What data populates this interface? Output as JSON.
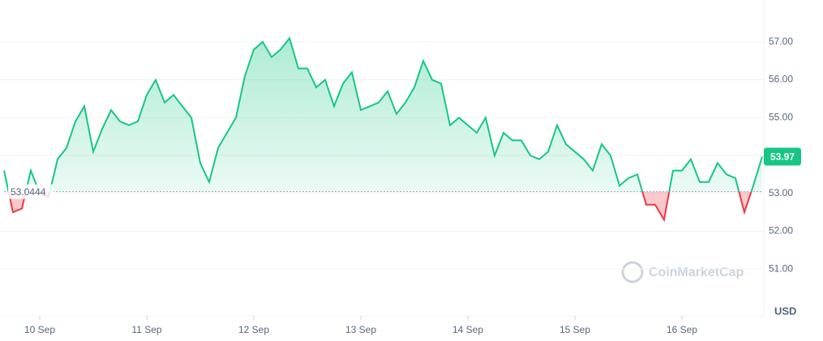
{
  "chart_data": {
    "type": "line",
    "categories": [
      null,
      null,
      null,
      null,
      "10 Sep",
      null,
      null,
      null,
      null,
      null,
      null,
      null,
      null,
      null,
      null,
      null,
      "11 Sep",
      null,
      null,
      null,
      null,
      null,
      null,
      null,
      null,
      null,
      null,
      null,
      "12 Sep",
      null,
      null,
      null,
      null,
      null,
      null,
      null,
      null,
      null,
      null,
      null,
      "13 Sep",
      null,
      null,
      null,
      null,
      null,
      null,
      null,
      null,
      null,
      null,
      null,
      "14 Sep",
      null,
      null,
      null,
      null,
      null,
      null,
      null,
      null,
      null,
      null,
      null,
      "15 Sep",
      null,
      null,
      null,
      null,
      null,
      null,
      null,
      null,
      null,
      null,
      null,
      "16 Sep",
      null,
      null,
      null,
      null,
      null,
      null,
      null,
      null,
      null
    ],
    "series": [
      {
        "color": "#16c784",
        "down_color": "#ea3943",
        "values": [
          53.6,
          52.5,
          52.6,
          53.6,
          53.0,
          52.9,
          53.9,
          54.2,
          54.9,
          55.3,
          54.1,
          54.7,
          55.2,
          54.9,
          54.8,
          54.9,
          55.6,
          56.0,
          55.4,
          55.6,
          55.3,
          55.0,
          53.8,
          53.3,
          54.2,
          54.6,
          55.0,
          56.1,
          56.8,
          57.0,
          56.6,
          56.8,
          57.1,
          56.3,
          56.3,
          55.8,
          56.0,
          55.3,
          55.9,
          56.2,
          55.2,
          55.3,
          55.4,
          55.7,
          55.1,
          55.4,
          55.8,
          56.5,
          56.0,
          55.9,
          54.8,
          55.0,
          54.8,
          54.6,
          55.0,
          54.0,
          54.6,
          54.4,
          54.4,
          54.0,
          53.9,
          54.1,
          54.8,
          54.3,
          54.1,
          53.9,
          53.6,
          54.3,
          54.0,
          53.2,
          53.4,
          53.5,
          52.7,
          52.7,
          52.3,
          53.6,
          53.6,
          53.9,
          53.3,
          53.3,
          53.8,
          53.5,
          53.4,
          52.5,
          53.2,
          53.97
        ]
      }
    ],
    "baseline": 53.0444,
    "ylim": [
      49.76,
      58.11
    ],
    "yticks": [
      {
        "value": 51,
        "label": "51.00"
      },
      {
        "value": 52,
        "label": "52.00"
      },
      {
        "value": 53,
        "label": "53.00"
      },
      {
        "value": 54,
        "label": "54.00"
      },
      {
        "value": 55,
        "label": "55.00"
      },
      {
        "value": 56,
        "label": "56.00"
      },
      {
        "value": 57,
        "label": "57.00"
      }
    ],
    "grid": true,
    "currency": "USD",
    "watermark": "CoinMarketCap"
  }
}
